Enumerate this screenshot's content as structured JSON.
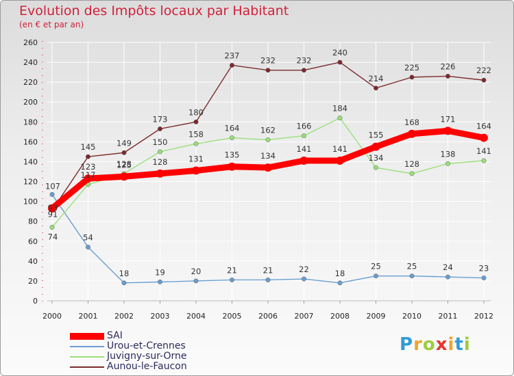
{
  "chart_data": {
    "type": "line",
    "title": "Evolution des Impôts locaux par Habitant",
    "subtitle": "(en € et par an)",
    "xlabel": "",
    "ylabel": "",
    "ylim": [
      0,
      260
    ],
    "yticks": [
      0,
      20,
      40,
      60,
      80,
      100,
      120,
      140,
      160,
      180,
      200,
      220,
      240,
      260
    ],
    "categories": [
      "2000",
      "2001",
      "2002",
      "2003",
      "2004",
      "2005",
      "2006",
      "2007",
      "2008",
      "2009",
      "2010",
      "2011",
      "2012"
    ],
    "grid": true,
    "legend_position": "bottom-left",
    "series": [
      {
        "name": "SAI",
        "color": "#ff0000",
        "values": [
          93,
          123,
          125,
          128,
          131,
          135,
          134,
          141,
          141,
          155,
          168,
          171,
          164
        ]
      },
      {
        "name": "Urou-et-Crennes",
        "color": "#6a9ed0",
        "values": [
          107,
          54,
          18,
          19,
          20,
          21,
          21,
          22,
          18,
          25,
          25,
          24,
          23
        ]
      },
      {
        "name": "Juvigny-sur-Orne",
        "color": "#99e07a",
        "values": [
          74,
          117,
          128,
          150,
          158,
          164,
          162,
          166,
          184,
          134,
          128,
          138,
          141
        ]
      },
      {
        "name": "Aunou-le-Faucon",
        "color": "#7b2a2e",
        "values": [
          91,
          145,
          149,
          173,
          180,
          237,
          232,
          232,
          240,
          214,
          225,
          226,
          222
        ]
      }
    ]
  },
  "logo": {
    "letters": [
      "P",
      "r",
      "o",
      "x",
      "i",
      "t",
      "i"
    ],
    "colors": [
      "#2f9bd6",
      "#f0a32c",
      "#9ccc3c",
      "#e5352b",
      "#f0a32c",
      "#2f9bd6",
      "#9ccc3c"
    ]
  }
}
